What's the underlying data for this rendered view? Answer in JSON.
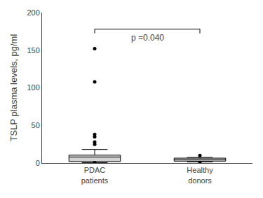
{
  "chart_data": {
    "type": "box",
    "ylabel": "TSLP plasma levels, pg/ml",
    "categories": [
      "PDAC\npatients",
      "Healthy\ndonors"
    ],
    "series": [
      {
        "color": "#d3d3d3",
        "q1": 2.0,
        "median": 8.0,
        "q3": 10.5,
        "whisker_low": 0.5,
        "whisker_high": 18.0,
        "outliers": [
          0.3,
          25.0,
          28.0,
          35.0,
          38.0,
          108.0,
          152.0
        ]
      },
      {
        "color": "#d3d3d3",
        "q1": 2.5,
        "median": 4.5,
        "q3": 6.5,
        "whisker_low": 1.5,
        "whisker_high": 7.5,
        "outliers": [
          0.5,
          10.0
        ]
      }
    ],
    "annotations": [
      {
        "text": "p =0.040",
        "y": 178,
        "between": [
          "PDAC\npatients",
          "Healthy\ndonors"
        ]
      }
    ],
    "ylim": [
      0,
      200
    ],
    "yticks": [
      0,
      50,
      100,
      150,
      200
    ],
    "grid": false
  }
}
